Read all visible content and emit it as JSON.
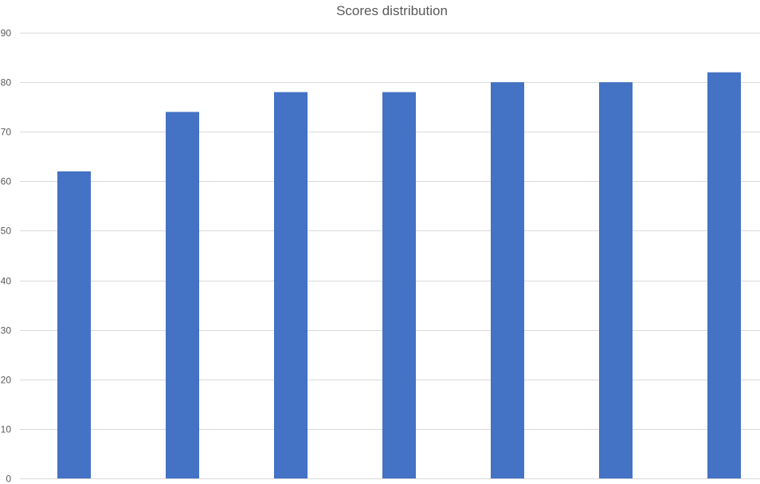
{
  "chart_data": {
    "type": "bar",
    "title": "Scores distribution",
    "xlabel": "",
    "ylabel": "",
    "categories": [
      "",
      "",
      "",
      "",
      "",
      "",
      ""
    ],
    "values": [
      62,
      74,
      78,
      78,
      80,
      80,
      82
    ],
    "ylim": [
      0,
      90
    ],
    "yticks": [
      0,
      10,
      20,
      30,
      40,
      50,
      60,
      70,
      80,
      90
    ],
    "grid": true,
    "legend": "none",
    "colors": {
      "bar": "#4472C4",
      "grid": "#D9D9D9",
      "tick_text": "#595959",
      "title_text": "#595959"
    }
  }
}
